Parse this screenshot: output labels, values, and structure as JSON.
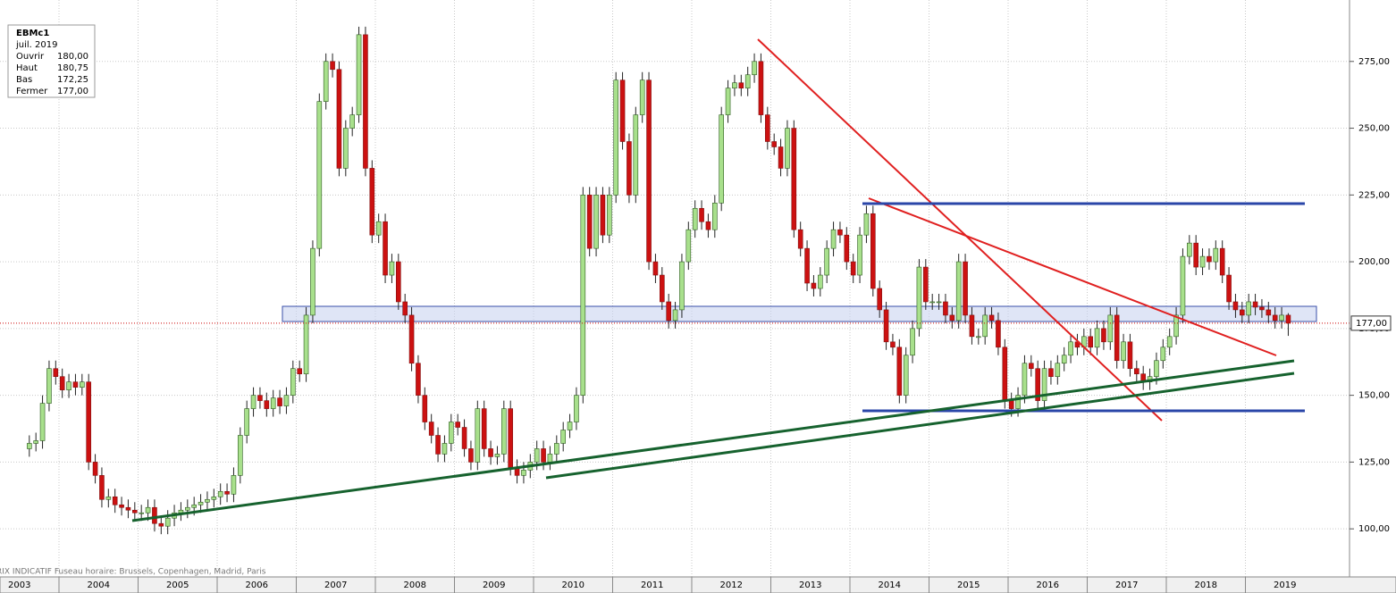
{
  "chart_data": {
    "type": "candlestick",
    "info": {
      "symbol": "EBMc1",
      "period": "juil. 2019",
      "rows": [
        [
          "Ouvrir",
          "180,00"
        ],
        [
          "Haut",
          "180,75"
        ],
        [
          "Bas",
          "172,25"
        ],
        [
          "Fermer",
          "177,00"
        ]
      ]
    },
    "footer": "RIX INDICATIF   Fuseau horaire: Brussels, Copenhagen, Madrid, Paris",
    "last_price_label": "177,00",
    "x_labels": [
      "2003",
      "2004",
      "2005",
      "2006",
      "2007",
      "2008",
      "2009",
      "2010",
      "2011",
      "2012",
      "2013",
      "2014",
      "2015",
      "2016",
      "2017",
      "2018",
      "2019"
    ],
    "ylim": [
      82,
      298
    ],
    "yticks": [
      {
        "value": 100,
        "label": "100,00"
      },
      {
        "value": 125,
        "label": "125,00"
      },
      {
        "value": 150,
        "label": "150,00"
      },
      {
        "value": 175,
        "label": "175,00"
      },
      {
        "value": 200,
        "label": "200,00"
      },
      {
        "value": 225,
        "label": "225,00"
      },
      {
        "value": 250,
        "label": "250,00"
      },
      {
        "value": 275,
        "label": "275,00"
      }
    ],
    "grid": true,
    "up_color": "#a8e08c",
    "down_color": "#cc1111",
    "open": [
      130,
      132,
      133,
      147,
      160,
      157,
      152,
      155,
      153,
      155,
      125,
      120,
      111,
      112,
      109,
      108,
      107,
      106,
      106,
      108,
      102,
      101,
      104,
      106,
      107,
      108,
      109,
      110,
      111,
      112,
      114,
      113,
      120,
      135,
      145,
      150,
      148,
      145,
      149,
      146,
      150,
      160,
      158,
      180,
      205,
      260,
      275,
      272,
      235,
      250,
      255,
      285,
      235,
      210,
      215,
      195,
      200,
      185,
      180,
      162,
      150,
      140,
      135,
      128,
      132,
      140,
      138,
      130,
      125,
      145,
      130,
      127,
      128,
      145,
      123,
      120,
      122,
      125,
      130,
      125,
      128,
      132,
      137,
      140,
      150,
      225,
      205,
      225,
      210,
      225,
      268,
      245,
      225,
      255,
      268,
      200,
      195,
      185,
      178,
      182,
      200,
      212,
      220,
      215,
      212,
      222,
      255,
      265,
      267,
      265,
      270,
      275,
      255,
      245,
      243,
      235,
      250,
      212,
      205,
      192,
      190,
      195,
      205,
      212,
      210,
      200,
      195,
      210,
      218,
      190,
      182,
      170,
      168,
      150,
      165,
      175,
      198,
      185,
      185,
      185,
      180,
      178,
      200,
      180,
      172,
      172,
      180,
      178,
      168,
      148,
      145,
      150,
      162,
      160,
      148,
      160,
      157,
      162,
      165,
      170,
      168,
      172,
      168,
      175,
      170,
      180,
      163,
      170,
      160,
      158,
      155,
      157,
      163,
      168,
      172,
      180,
      202,
      207,
      198,
      202,
      200,
      205,
      195,
      185,
      182,
      180,
      185,
      183,
      182,
      180,
      178,
      180
    ],
    "high": [
      135,
      136,
      150,
      163,
      163,
      160,
      158,
      158,
      158,
      158,
      128,
      123,
      115,
      115,
      112,
      111,
      110,
      109,
      111,
      111,
      105,
      107,
      109,
      110,
      111,
      112,
      113,
      114,
      115,
      117,
      117,
      123,
      138,
      148,
      153,
      153,
      151,
      152,
      152,
      153,
      163,
      163,
      183,
      208,
      263,
      278,
      278,
      275,
      253,
      258,
      288,
      288,
      238,
      218,
      218,
      203,
      203,
      188,
      183,
      165,
      153,
      143,
      138,
      135,
      143,
      143,
      141,
      133,
      148,
      148,
      133,
      131,
      148,
      148,
      126,
      125,
      128,
      133,
      133,
      131,
      135,
      140,
      143,
      153,
      228,
      228,
      228,
      228,
      228,
      271,
      271,
      248,
      258,
      271,
      271,
      203,
      198,
      188,
      185,
      203,
      215,
      223,
      223,
      218,
      225,
      258,
      268,
      270,
      270,
      273,
      278,
      278,
      258,
      248,
      246,
      253,
      253,
      215,
      208,
      195,
      198,
      208,
      215,
      215,
      213,
      203,
      213,
      221,
      221,
      193,
      185,
      173,
      171,
      168,
      178,
      201,
      201,
      188,
      188,
      188,
      183,
      203,
      203,
      183,
      175,
      183,
      183,
      181,
      171,
      151,
      153,
      165,
      165,
      163,
      163,
      163,
      165,
      168,
      173,
      173,
      175,
      175,
      178,
      178,
      183,
      183,
      173,
      173,
      163,
      161,
      160,
      166,
      171,
      175,
      183,
      205,
      210,
      210,
      205,
      205,
      208,
      208,
      198,
      188,
      185,
      188,
      188,
      186,
      185,
      183,
      183,
      180.75
    ],
    "low": [
      127,
      129,
      130,
      144,
      154,
      149,
      149,
      150,
      150,
      122,
      117,
      108,
      108,
      106,
      105,
      104,
      103,
      103,
      103,
      99,
      98,
      98,
      101,
      103,
      104,
      105,
      106,
      107,
      108,
      109,
      110,
      110,
      117,
      132,
      142,
      145,
      142,
      142,
      143,
      143,
      147,
      155,
      155,
      177,
      202,
      257,
      269,
      232,
      232,
      247,
      252,
      232,
      207,
      207,
      192,
      192,
      182,
      177,
      159,
      147,
      137,
      132,
      125,
      125,
      129,
      135,
      127,
      122,
      122,
      127,
      124,
      124,
      125,
      120,
      117,
      117,
      119,
      122,
      122,
      122,
      125,
      129,
      134,
      137,
      147,
      202,
      202,
      207,
      207,
      222,
      242,
      222,
      222,
      252,
      197,
      192,
      182,
      175,
      175,
      179,
      197,
      209,
      212,
      209,
      209,
      219,
      252,
      262,
      262,
      262,
      267,
      252,
      242,
      240,
      232,
      232,
      209,
      202,
      189,
      187,
      187,
      192,
      202,
      207,
      197,
      192,
      192,
      207,
      187,
      179,
      167,
      165,
      147,
      147,
      162,
      172,
      182,
      182,
      182,
      177,
      175,
      175,
      177,
      169,
      169,
      169,
      175,
      165,
      145,
      142,
      142,
      147,
      157,
      145,
      145,
      154,
      154,
      159,
      162,
      165,
      165,
      165,
      165,
      167,
      167,
      160,
      160,
      157,
      155,
      152,
      152,
      154,
      160,
      165,
      169,
      177,
      199,
      195,
      195,
      197,
      197,
      192,
      182,
      179,
      177,
      177,
      180,
      179,
      177,
      175,
      175,
      172.25
    ],
    "close": [
      132,
      133,
      147,
      160,
      157,
      152,
      155,
      153,
      155,
      125,
      120,
      111,
      112,
      109,
      108,
      107,
      106,
      106,
      108,
      102,
      101,
      104,
      106,
      107,
      108,
      109,
      110,
      111,
      112,
      114,
      113,
      120,
      135,
      145,
      150,
      148,
      145,
      149,
      146,
      150,
      160,
      158,
      180,
      205,
      260,
      275,
      272,
      235,
      250,
      255,
      285,
      235,
      210,
      215,
      195,
      200,
      185,
      180,
      162,
      150,
      140,
      135,
      128,
      132,
      140,
      138,
      130,
      125,
      145,
      130,
      127,
      128,
      145,
      123,
      120,
      122,
      125,
      130,
      125,
      128,
      132,
      137,
      140,
      150,
      225,
      205,
      225,
      210,
      225,
      268,
      245,
      225,
      255,
      268,
      200,
      195,
      185,
      178,
      182,
      200,
      212,
      220,
      215,
      212,
      222,
      255,
      265,
      267,
      265,
      270,
      275,
      255,
      245,
      243,
      235,
      250,
      212,
      205,
      192,
      190,
      195,
      205,
      212,
      210,
      200,
      195,
      210,
      218,
      190,
      182,
      170,
      168,
      150,
      165,
      175,
      198,
      185,
      185,
      185,
      180,
      178,
      200,
      180,
      172,
      172,
      180,
      178,
      168,
      148,
      145,
      150,
      162,
      160,
      148,
      160,
      157,
      162,
      165,
      170,
      168,
      172,
      168,
      175,
      170,
      180,
      163,
      170,
      160,
      158,
      155,
      157,
      163,
      168,
      172,
      180,
      202,
      207,
      198,
      202,
      200,
      205,
      195,
      185,
      182,
      180,
      185,
      183,
      182,
      180,
      178,
      180,
      177
    ]
  }
}
